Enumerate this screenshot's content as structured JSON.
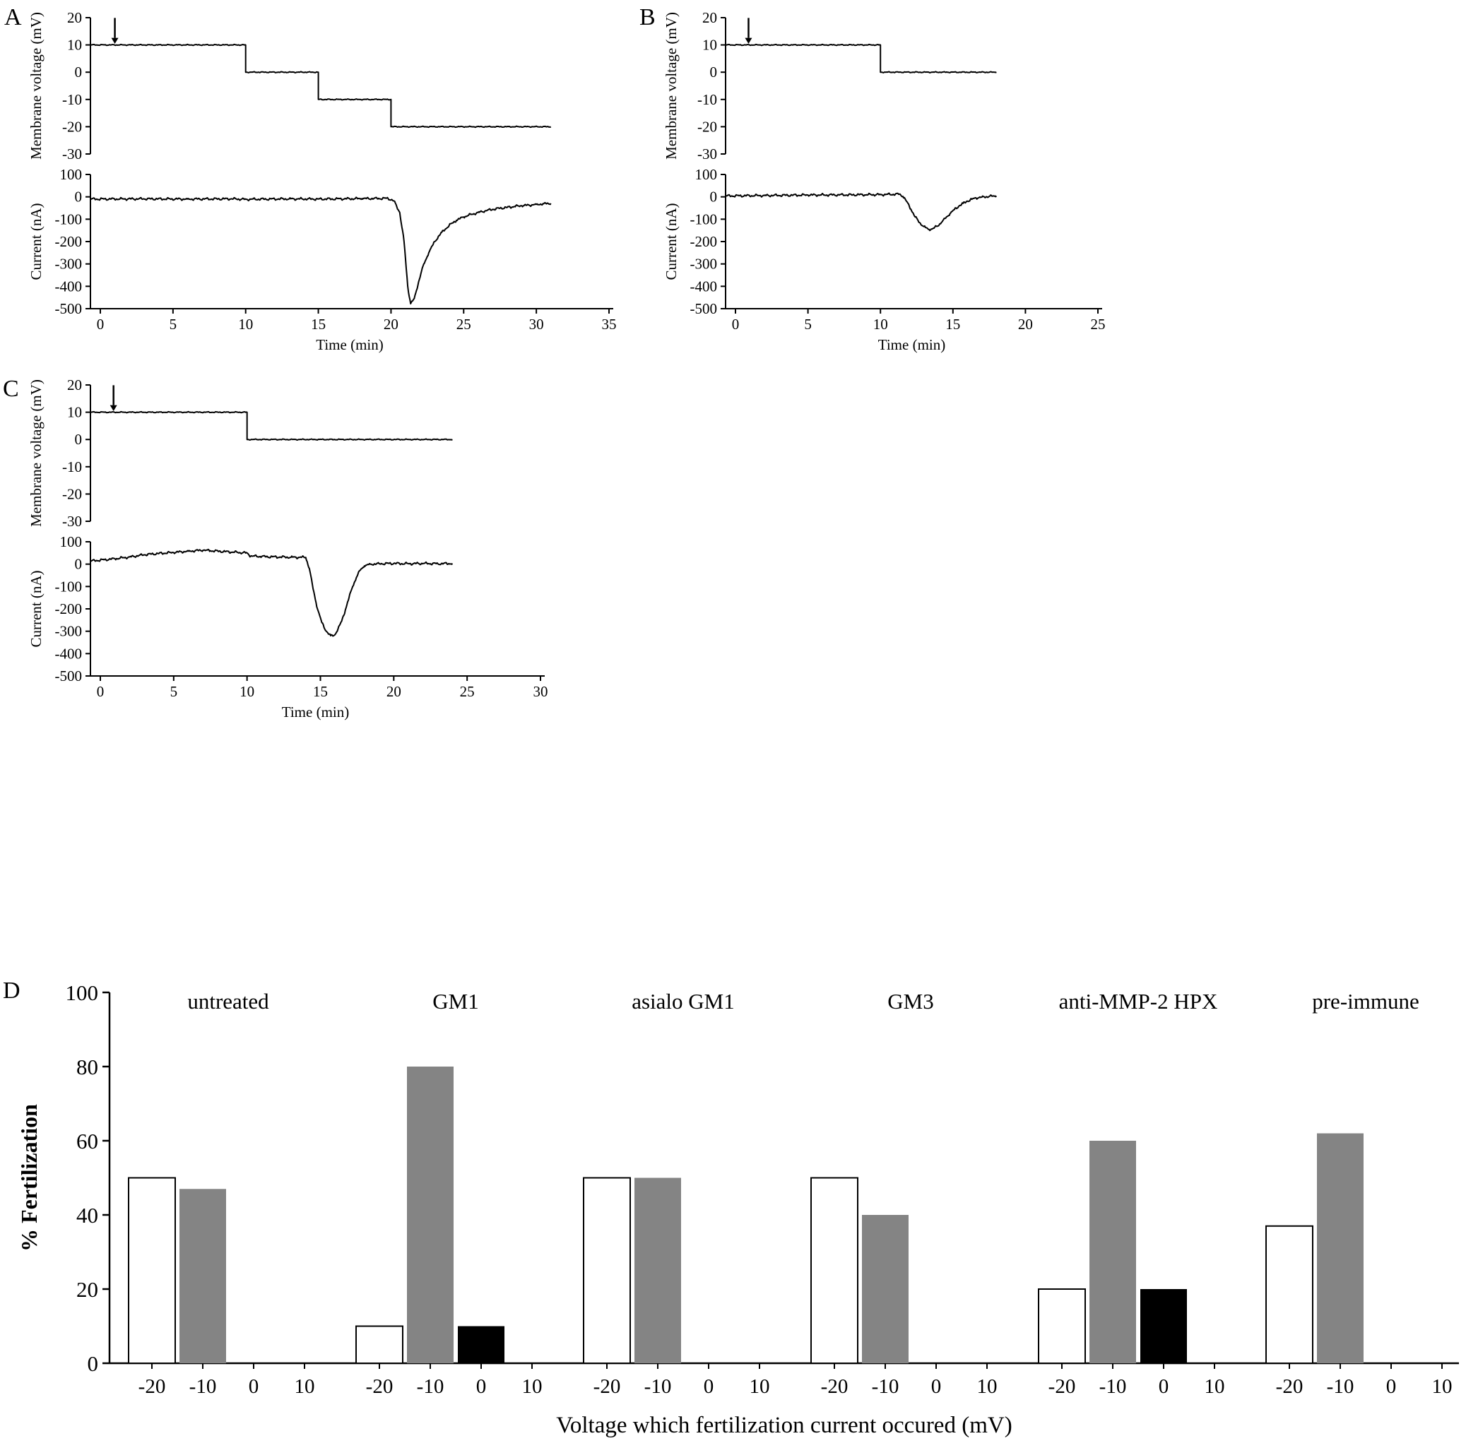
{
  "figure": {
    "background": "#ffffff",
    "trace_color": "#000000"
  },
  "chart_data": [
    {
      "panel_label": "A",
      "type": "line",
      "xlabel": "Time (min)",
      "x_ticks": [
        0,
        5,
        10,
        15,
        20,
        25,
        30,
        35
      ],
      "arrow_x": 1.0,
      "subplots": [
        {
          "name": "voltage",
          "ylabel": "Membrane voltage (mV)",
          "ylim": [
            -30,
            20
          ],
          "y_ticks": [
            20,
            10,
            0,
            -10,
            -20,
            -30
          ],
          "series": [
            {
              "name": "membrane-voltage",
              "points": [
                [
                  -0.65,
                  10
                ],
                [
                  10,
                  10
                ],
                [
                  10,
                  0
                ],
                [
                  15,
                  0
                ],
                [
                  15,
                  -10
                ],
                [
                  20,
                  -10
                ],
                [
                  20,
                  -20
                ],
                [
                  31,
                  -20
                ]
              ]
            }
          ]
        },
        {
          "name": "current",
          "ylabel": "Current (nA)",
          "ylim": [
            -500,
            100
          ],
          "y_ticks": [
            100,
            0,
            -100,
            -200,
            -300,
            -400,
            -500
          ],
          "series": [
            {
              "name": "fertilization-current",
              "points": [
                [
                  -0.65,
                  -10
                ],
                [
                  3,
                  -9
                ],
                [
                  6,
                  -10
                ],
                [
                  9,
                  -9
                ],
                [
                  10,
                  -11
                ],
                [
                  13,
                  -9
                ],
                [
                  15,
                  -10
                ],
                [
                  18,
                  -8
                ],
                [
                  19.8,
                  -7
                ],
                [
                  20.2,
                  -18
                ],
                [
                  20.6,
                  -70
                ],
                [
                  20.9,
                  -200
                ],
                [
                  21.15,
                  -400
                ],
                [
                  21.35,
                  -478
                ],
                [
                  21.6,
                  -455
                ],
                [
                  21.9,
                  -380
                ],
                [
                  22.2,
                  -310
                ],
                [
                  22.6,
                  -250
                ],
                [
                  23,
                  -200
                ],
                [
                  23.5,
                  -158
                ],
                [
                  24,
                  -128
                ],
                [
                  24.5,
                  -105
                ],
                [
                  25,
                  -90
                ],
                [
                  25.5,
                  -79
                ],
                [
                  26,
                  -70
                ],
                [
                  26.5,
                  -62
                ],
                [
                  27,
                  -56
                ],
                [
                  27.5,
                  -51
                ],
                [
                  28,
                  -47
                ],
                [
                  28.5,
                  -43
                ],
                [
                  29,
                  -40
                ],
                [
                  29.5,
                  -37
                ],
                [
                  30,
                  -34
                ],
                [
                  30.5,
                  -31
                ],
                [
                  31,
                  -29
                ]
              ]
            }
          ]
        }
      ]
    },
    {
      "panel_label": "B",
      "type": "line",
      "xlabel": "Time (min)",
      "x_ticks": [
        0,
        5,
        10,
        15,
        20,
        25
      ],
      "arrow_x": 0.9,
      "subplots": [
        {
          "name": "voltage",
          "ylabel": "Membrane voltage (mV)",
          "ylim": [
            -30,
            20
          ],
          "y_ticks": [
            20,
            10,
            0,
            -10,
            -20,
            -30
          ],
          "series": [
            {
              "name": "membrane-voltage",
              "points": [
                [
                  -0.65,
                  10
                ],
                [
                  10,
                  10
                ],
                [
                  10,
                  0
                ],
                [
                  18,
                  0
                ]
              ]
            }
          ]
        },
        {
          "name": "current",
          "ylabel": "Current (nA)",
          "ylim": [
            -500,
            100
          ],
          "y_ticks": [
            100,
            0,
            -100,
            -200,
            -300,
            -400,
            -500
          ],
          "series": [
            {
              "name": "fertilization-current",
              "points": [
                [
                  -0.65,
                  4
                ],
                [
                  2,
                  6
                ],
                [
                  5,
                  8
                ],
                [
                  8,
                  9
                ],
                [
                  10,
                  10
                ],
                [
                  11.3,
                  12
                ],
                [
                  11.55,
                  2
                ],
                [
                  11.8,
                  -20
                ],
                [
                  12.1,
                  -55
                ],
                [
                  12.4,
                  -90
                ],
                [
                  12.7,
                  -115
                ],
                [
                  13,
                  -133
                ],
                [
                  13.3,
                  -145
                ],
                [
                  13.6,
                  -143
                ],
                [
                  13.9,
                  -132
                ],
                [
                  14.2,
                  -115
                ],
                [
                  14.5,
                  -95
                ],
                [
                  14.8,
                  -75
                ],
                [
                  15.1,
                  -57
                ],
                [
                  15.4,
                  -42
                ],
                [
                  15.7,
                  -29
                ],
                [
                  16,
                  -19
                ],
                [
                  16.3,
                  -11
                ],
                [
                  16.6,
                  -5
                ],
                [
                  17,
                  -1
                ],
                [
                  17.5,
                  2
                ],
                [
                  18,
                  4
                ]
              ]
            }
          ]
        }
      ]
    },
    {
      "panel_label": "C",
      "type": "line",
      "xlabel": "Time (min)",
      "x_ticks": [
        0,
        5,
        10,
        15,
        20,
        25,
        30
      ],
      "arrow_x": 0.9,
      "subplots": [
        {
          "name": "voltage",
          "ylabel": "Membrane voltage (mV)",
          "ylim": [
            -30,
            20
          ],
          "y_ticks": [
            20,
            10,
            0,
            -10,
            -20,
            -30
          ],
          "series": [
            {
              "name": "membrane-voltage",
              "points": [
                [
                  -0.65,
                  10
                ],
                [
                  10,
                  10
                ],
                [
                  10,
                  0
                ],
                [
                  24,
                  0
                ]
              ]
            }
          ]
        },
        {
          "name": "current",
          "ylabel": "Current (nA)",
          "ylim": [
            -500,
            100
          ],
          "y_ticks": [
            100,
            0,
            -100,
            -200,
            -300,
            -400,
            -500
          ],
          "series": [
            {
              "name": "fertilization-current",
              "points": [
                [
                  -0.65,
                  14
                ],
                [
                  1,
                  24
                ],
                [
                  2,
                  32
                ],
                [
                  3,
                  42
                ],
                [
                  4,
                  48
                ],
                [
                  5,
                  52
                ],
                [
                  6,
                  58
                ],
                [
                  7,
                  62
                ],
                [
                  7.5,
                  60
                ],
                [
                  8.5,
                  56
                ],
                [
                  9.5,
                  52
                ],
                [
                  10,
                  50
                ],
                [
                  10.25,
                  36
                ],
                [
                  11,
                  34
                ],
                [
                  12,
                  32
                ],
                [
                  13,
                  31
                ],
                [
                  14,
                  30
                ],
                [
                  14.25,
                  -20
                ],
                [
                  14.5,
                  -110
                ],
                [
                  14.8,
                  -200
                ],
                [
                  15.1,
                  -262
                ],
                [
                  15.4,
                  -300
                ],
                [
                  15.7,
                  -320
                ],
                [
                  15.95,
                  -318
                ],
                [
                  16.2,
                  -290
                ],
                [
                  16.45,
                  -255
                ],
                [
                  16.7,
                  -205
                ],
                [
                  16.95,
                  -150
                ],
                [
                  17.2,
                  -100
                ],
                [
                  17.45,
                  -60
                ],
                [
                  17.7,
                  -28
                ],
                [
                  18,
                  -8
                ],
                [
                  18.4,
                  0
                ],
                [
                  19,
                  2
                ],
                [
                  20,
                  3
                ],
                [
                  21,
                  2
                ],
                [
                  22,
                  3
                ],
                [
                  23,
                  2
                ],
                [
                  24,
                  3
                ]
              ]
            }
          ]
        }
      ]
    },
    {
      "panel_label": "D",
      "type": "bar",
      "ylabel": "% Fertilization",
      "xlabel": "Voltage which fertilization current occured (mV)",
      "ylim": [
        0,
        100
      ],
      "y_ticks": [
        0,
        20,
        40,
        60,
        80,
        100
      ],
      "x_categories": [
        "-20",
        "-10",
        "0",
        "10"
      ],
      "bar_colors": {
        "white": "#ffffff",
        "gray": "#848484",
        "black": "#000000"
      },
      "groups": [
        {
          "label": "untreated",
          "bars": [
            {
              "x": "-20",
              "value": 50,
              "color": "white"
            },
            {
              "x": "-10",
              "value": 47,
              "color": "gray"
            }
          ]
        },
        {
          "label": "GM1",
          "bars": [
            {
              "x": "-20",
              "value": 10,
              "color": "white"
            },
            {
              "x": "-10",
              "value": 80,
              "color": "gray"
            },
            {
              "x": "0",
              "value": 10,
              "color": "black"
            }
          ]
        },
        {
          "label": "asialo GM1",
          "bars": [
            {
              "x": "-20",
              "value": 50,
              "color": "white"
            },
            {
              "x": "-10",
              "value": 50,
              "color": "gray"
            }
          ]
        },
        {
          "label": "GM3",
          "bars": [
            {
              "x": "-20",
              "value": 50,
              "color": "white"
            },
            {
              "x": "-10",
              "value": 40,
              "color": "gray"
            }
          ]
        },
        {
          "label": "anti-MMP-2 HPX",
          "bars": [
            {
              "x": "-20",
              "value": 20,
              "color": "white"
            },
            {
              "x": "-10",
              "value": 60,
              "color": "gray"
            },
            {
              "x": "0",
              "value": 20,
              "color": "black"
            }
          ]
        },
        {
          "label": "pre-immune",
          "bars": [
            {
              "x": "-20",
              "value": 37,
              "color": "white"
            },
            {
              "x": "-10",
              "value": 62,
              "color": "gray"
            }
          ]
        }
      ]
    }
  ]
}
